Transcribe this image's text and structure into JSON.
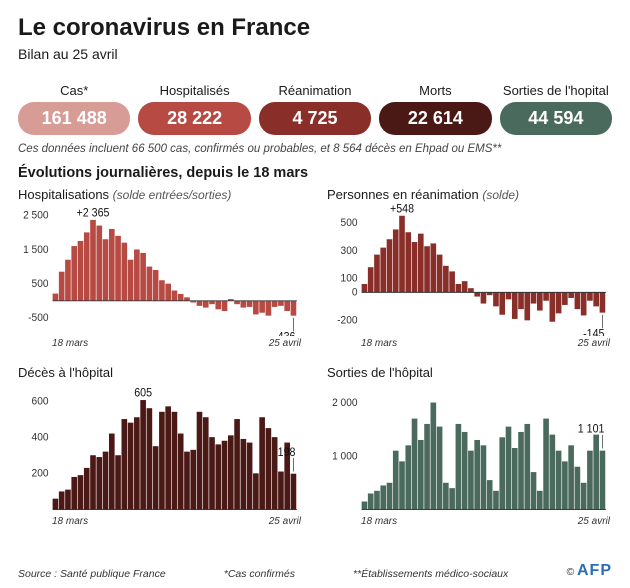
{
  "title": "Le coronavirus en France",
  "subtitle": "Bilan au 25 avril",
  "pills": [
    {
      "label": "Cas*",
      "value": "161 488",
      "color": "#d79c96"
    },
    {
      "label": "Hospitalisés",
      "value": "28 222",
      "color": "#b74a43"
    },
    {
      "label": "Réanimation",
      "value": "4 725",
      "color": "#8a2e2a"
    },
    {
      "label": "Morts",
      "value": "22 614",
      "color": "#4a1916"
    },
    {
      "label": "Sorties de l'hopital",
      "value": "44 594",
      "color": "#4b6a5e"
    }
  ],
  "footnote1": "Ces données incluent 66 500 cas, confirmés ou probables, et 8 564 décès en Ehpad ou EMS**",
  "section_title": "Évolutions journalières, depuis le 18 mars",
  "date_start": "18 mars",
  "date_end": "25 avril",
  "charts": {
    "hosp": {
      "title": "Hospitalisations",
      "subtitle": "(solde entrées/sorties)",
      "color": "#b74a43",
      "y_ticks": [
        -500,
        500,
        1500,
        2500
      ],
      "ylim": [
        -900,
        2700
      ],
      "max_label": "+2 365",
      "last_label": "-436",
      "values": [
        210,
        850,
        1200,
        1600,
        1750,
        2000,
        2365,
        2200,
        1800,
        2100,
        1900,
        1700,
        1200,
        1500,
        1400,
        1000,
        900,
        600,
        500,
        300,
        200,
        100,
        -50,
        -150,
        -200,
        -100,
        -250,
        -300,
        50,
        -100,
        -200,
        -180,
        -400,
        -350,
        -436,
        -180,
        -150,
        -300,
        -436
      ]
    },
    "rea": {
      "title": "Personnes en réanimation",
      "subtitle": "(solde)",
      "color": "#8a2e2a",
      "y_ticks": [
        -200,
        0,
        100,
        300,
        500
      ],
      "ylim": [
        -280,
        600
      ],
      "max_label": "+548",
      "last_label": "-145",
      "values": [
        60,
        180,
        270,
        320,
        380,
        450,
        548,
        430,
        360,
        420,
        330,
        350,
        270,
        190,
        150,
        60,
        80,
        30,
        -30,
        -80,
        -20,
        -100,
        -160,
        -50,
        -190,
        -120,
        -200,
        -80,
        -130,
        -60,
        -210,
        -150,
        -90,
        -40,
        -120,
        -165,
        -60,
        -100,
        -145
      ]
    },
    "deces": {
      "title": "Décès à l'hôpital",
      "subtitle": "",
      "color": "#4a1916",
      "y_ticks": [
        200,
        400,
        600
      ],
      "ylim": [
        0,
        680
      ],
      "max_label": "605",
      "last_label": "198",
      "values": [
        60,
        100,
        110,
        180,
        190,
        230,
        300,
        290,
        320,
        420,
        300,
        500,
        480,
        510,
        605,
        560,
        350,
        540,
        570,
        540,
        420,
        320,
        330,
        540,
        510,
        400,
        360,
        380,
        410,
        500,
        390,
        370,
        200,
        510,
        450,
        400,
        210,
        370,
        198
      ]
    },
    "sorties": {
      "title": "Sorties de l'hôpital",
      "subtitle": "",
      "color": "#4b6a5e",
      "y_ticks": [
        1000,
        2000
      ],
      "ylim": [
        0,
        2300
      ],
      "max_label": "",
      "last_label": "1 101",
      "values": [
        150,
        300,
        350,
        450,
        500,
        1100,
        900,
        1200,
        1700,
        1300,
        1600,
        2000,
        1550,
        500,
        400,
        1600,
        1450,
        1100,
        1300,
        1200,
        550,
        350,
        1350,
        1550,
        1150,
        1450,
        1600,
        700,
        350,
        1700,
        1400,
        1100,
        900,
        1200,
        800,
        500,
        1100,
        1400,
        1101
      ]
    }
  },
  "footer": {
    "source": "Source : Santé publique France",
    "note_cas": "*Cas confirmés",
    "note_ems": "**Établissements médico-sociaux",
    "copyright": "©",
    "logo": "AFP"
  }
}
